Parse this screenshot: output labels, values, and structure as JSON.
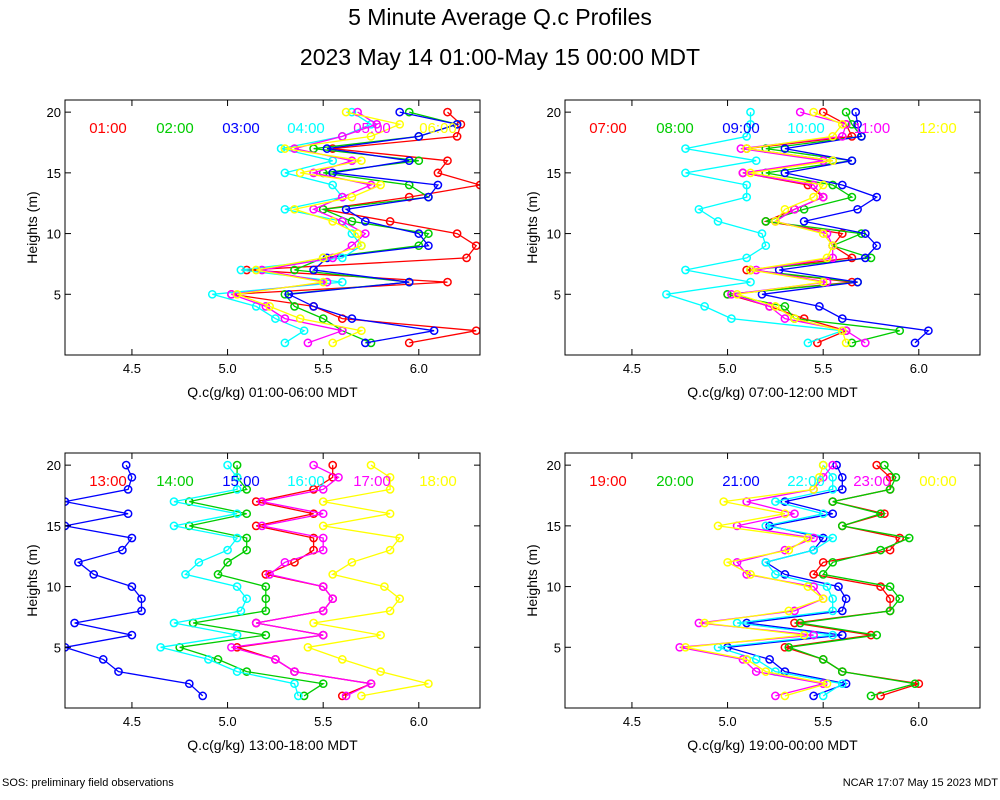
{
  "title": "5 Minute Average Q.c Profiles",
  "subtitle": "2023 May 14 01:00-May 15 00:00 MDT",
  "footer_left": "SOS: preliminary field observations",
  "footer_right": "NCAR 17:07 May 15 2023 MDT",
  "colors": {
    "c1": "#ff0000",
    "c2": "#00cc00",
    "c3": "#0000ff",
    "c4": "#00ffff",
    "c5": "#ff00ff",
    "c6": "#ffff00"
  },
  "chart_data": [
    {
      "type": "line",
      "xlabel": "Q.c(g/kg) 01:00-06:00 MDT",
      "ylabel": "Heights (m)",
      "xlim": [
        4.15,
        6.32
      ],
      "ylim": [
        0,
        21
      ],
      "xticks": [
        4.5,
        5.0,
        5.5,
        6.0
      ],
      "yticks": [
        5,
        10,
        15,
        20
      ],
      "heights": [
        1,
        2,
        3,
        4,
        5,
        6,
        7,
        8,
        9,
        10,
        11,
        12,
        13,
        14,
        15,
        16,
        17,
        18,
        19,
        20
      ],
      "series": [
        {
          "name": "01:00",
          "color": "#ff0000",
          "values": [
            5.95,
            6.3,
            5.6,
            5.45,
            5.02,
            6.15,
            5.1,
            6.25,
            6.3,
            6.2,
            5.85,
            5.5,
            5.95,
            6.32,
            6.1,
            6.15,
            5.55,
            6.2,
            6.22,
            6.15
          ]
        },
        {
          "name": "02:00",
          "color": "#00cc00",
          "values": [
            5.75,
            5.6,
            5.5,
            5.35,
            5.3,
            5.95,
            5.35,
            5.5,
            6.0,
            6.05,
            5.65,
            5.5,
            6.05,
            5.95,
            5.5,
            6.0,
            5.45,
            6.0,
            6.2,
            5.95
          ]
        },
        {
          "name": "03:00",
          "color": "#0000ff",
          "values": [
            5.72,
            6.08,
            5.65,
            5.45,
            5.32,
            5.95,
            5.45,
            5.52,
            6.05,
            6.0,
            5.72,
            5.62,
            6.05,
            6.1,
            5.55,
            5.95,
            5.52,
            6.0,
            6.2,
            5.9
          ]
        },
        {
          "name": "04:00",
          "color": "#00ffff",
          "values": [
            5.3,
            5.4,
            5.25,
            5.15,
            4.92,
            5.6,
            5.07,
            5.6,
            5.7,
            5.65,
            5.6,
            5.3,
            5.6,
            5.55,
            5.3,
            5.55,
            5.28,
            5.6,
            5.75,
            5.65
          ]
        },
        {
          "name": "05:00",
          "color": "#ff00ff",
          "values": [
            5.42,
            5.6,
            5.3,
            5.2,
            5.02,
            5.52,
            5.18,
            5.55,
            5.65,
            5.72,
            5.6,
            5.45,
            5.6,
            5.75,
            5.45,
            5.65,
            5.35,
            5.6,
            5.78,
            5.68
          ]
        },
        {
          "name": "06:00",
          "color": "#ffff00",
          "values": [
            5.55,
            5.7,
            5.38,
            5.22,
            5.05,
            5.5,
            5.15,
            5.5,
            5.7,
            5.68,
            5.55,
            5.35,
            5.65,
            5.8,
            5.38,
            5.7,
            5.3,
            5.75,
            5.9,
            5.62
          ]
        }
      ]
    },
    {
      "type": "line",
      "xlabel": "Q.c(g/kg) 07:00-12:00 MDT",
      "ylabel": "Heights (m)",
      "xlim": [
        4.15,
        6.32
      ],
      "ylim": [
        0,
        21
      ],
      "xticks": [
        4.5,
        5.0,
        5.5,
        6.0
      ],
      "yticks": [
        5,
        10,
        15,
        20
      ],
      "heights": [
        1,
        2,
        3,
        4,
        5,
        6,
        7,
        8,
        9,
        10,
        11,
        12,
        13,
        14,
        15,
        16,
        17,
        18,
        19,
        20
      ],
      "series": [
        {
          "name": "07:00",
          "color": "#ff0000",
          "values": [
            5.47,
            5.62,
            5.4,
            5.22,
            5.0,
            5.65,
            5.1,
            5.65,
            5.55,
            5.6,
            5.2,
            5.35,
            5.5,
            5.42,
            5.08,
            5.55,
            5.1,
            5.65,
            5.62,
            5.5
          ]
        },
        {
          "name": "08:00",
          "color": "#00cc00",
          "values": [
            5.65,
            5.9,
            5.35,
            5.3,
            5.0,
            5.68,
            5.12,
            5.75,
            5.55,
            5.7,
            5.2,
            5.4,
            5.65,
            5.55,
            5.2,
            5.65,
            5.2,
            5.7,
            5.65,
            5.62
          ]
        },
        {
          "name": "09:00",
          "color": "#0000ff",
          "values": [
            5.98,
            6.05,
            5.6,
            5.48,
            5.18,
            5.68,
            5.27,
            5.72,
            5.78,
            5.72,
            5.4,
            5.68,
            5.78,
            5.6,
            5.3,
            5.65,
            5.3,
            5.7,
            5.68,
            5.67
          ]
        },
        {
          "name": "10:00",
          "color": "#00ffff",
          "values": [
            5.42,
            5.6,
            5.02,
            4.88,
            4.68,
            5.12,
            4.78,
            5.1,
            5.2,
            5.18,
            4.95,
            4.85,
            5.1,
            5.1,
            4.78,
            5.15,
            4.78,
            5.1,
            5.12,
            5.12
          ]
        },
        {
          "name": "11:00",
          "color": "#ff00ff",
          "values": [
            5.72,
            5.62,
            5.3,
            5.22,
            5.02,
            5.52,
            5.15,
            5.55,
            5.55,
            5.52,
            5.25,
            5.35,
            5.5,
            5.45,
            5.08,
            5.5,
            5.07,
            5.6,
            5.62,
            5.38
          ]
        },
        {
          "name": "12:00",
          "color": "#ffff00",
          "values": [
            5.62,
            5.6,
            5.35,
            5.25,
            5.05,
            5.5,
            5.12,
            5.52,
            5.55,
            5.5,
            5.25,
            5.3,
            5.45,
            5.5,
            5.12,
            5.55,
            5.1,
            5.55,
            5.6,
            5.45
          ]
        }
      ]
    },
    {
      "type": "line",
      "xlabel": "Q.c(g/kg) 13:00-18:00 MDT",
      "ylabel": "Heights (m)",
      "xlim": [
        4.15,
        6.32
      ],
      "ylim": [
        0,
        21
      ],
      "xticks": [
        4.5,
        5.0,
        5.5,
        6.0
      ],
      "yticks": [
        5,
        10,
        15,
        20
      ],
      "heights": [
        1,
        2,
        3,
        4,
        5,
        6,
        7,
        8,
        9,
        10,
        11,
        12,
        13,
        14,
        15,
        16,
        17,
        18,
        19,
        20
      ],
      "series": [
        {
          "name": "13:00",
          "color": "#ff0000",
          "values": [
            5.6,
            5.75,
            5.35,
            5.25,
            5.05,
            5.5,
            5.15,
            5.5,
            5.55,
            5.5,
            5.2,
            5.35,
            5.45,
            5.45,
            5.15,
            5.45,
            5.15,
            5.45,
            5.55,
            5.55
          ]
        },
        {
          "name": "14:00",
          "color": "#00cc00",
          "values": [
            5.4,
            5.5,
            5.1,
            4.95,
            4.75,
            5.2,
            4.82,
            5.2,
            5.2,
            5.2,
            4.95,
            5.0,
            5.1,
            5.1,
            4.8,
            5.1,
            4.8,
            5.1,
            5.05,
            5.05
          ]
        },
        {
          "name": "15:00",
          "color": "#0000ff",
          "values": [
            4.87,
            4.8,
            4.43,
            4.35,
            4.15,
            4.5,
            4.2,
            4.55,
            4.55,
            4.5,
            4.3,
            4.22,
            4.45,
            4.5,
            4.15,
            4.48,
            4.15,
            4.48,
            4.5,
            4.47
          ]
        },
        {
          "name": "16:00",
          "color": "#00ffff",
          "values": [
            5.37,
            5.35,
            5.05,
            4.9,
            4.65,
            5.05,
            4.72,
            5.07,
            5.1,
            5.05,
            4.78,
            4.85,
            5.0,
            5.05,
            4.72,
            5.05,
            4.72,
            5.05,
            5.05,
            5.0
          ]
        },
        {
          "name": "17:00",
          "color": "#ff00ff",
          "values": [
            5.62,
            5.75,
            5.35,
            5.25,
            5.02,
            5.5,
            5.15,
            5.5,
            5.55,
            5.5,
            5.22,
            5.3,
            5.5,
            5.5,
            5.18,
            5.5,
            5.18,
            5.5,
            5.58,
            5.45
          ]
        },
        {
          "name": "18:00",
          "color": "#ffff00",
          "values": [
            5.7,
            6.05,
            5.8,
            5.6,
            5.42,
            5.8,
            5.45,
            5.85,
            5.9,
            5.82,
            5.55,
            5.65,
            5.85,
            5.9,
            5.5,
            5.85,
            5.5,
            5.85,
            5.85,
            5.75
          ]
        }
      ]
    },
    {
      "type": "line",
      "xlabel": "Q.c(g/kg) 19:00-00:00 MDT",
      "ylabel": "Heights (m)",
      "xlim": [
        4.15,
        6.32
      ],
      "ylim": [
        0,
        21
      ],
      "xticks": [
        4.5,
        5.0,
        5.5,
        6.0
      ],
      "yticks": [
        5,
        10,
        15,
        20
      ],
      "heights": [
        1,
        2,
        3,
        4,
        5,
        6,
        7,
        8,
        9,
        10,
        11,
        12,
        13,
        14,
        15,
        16,
        17,
        18,
        19,
        20
      ],
      "series": [
        {
          "name": "19:00",
          "color": "#ff0000",
          "values": [
            5.8,
            6.0,
            5.6,
            5.5,
            5.3,
            5.75,
            5.35,
            5.85,
            5.85,
            5.8,
            5.45,
            5.5,
            5.85,
            5.9,
            5.6,
            5.82,
            5.55,
            5.85,
            5.85,
            5.78
          ]
        },
        {
          "name": "20:00",
          "color": "#00cc00",
          "values": [
            5.75,
            5.98,
            5.6,
            5.5,
            5.32,
            5.78,
            5.38,
            5.85,
            5.9,
            5.85,
            5.5,
            5.55,
            5.8,
            5.95,
            5.6,
            5.8,
            5.55,
            5.85,
            5.88,
            5.82
          ]
        },
        {
          "name": "21:00",
          "color": "#0000ff",
          "values": [
            5.45,
            5.62,
            5.3,
            5.22,
            5.0,
            5.6,
            5.1,
            5.6,
            5.62,
            5.58,
            5.3,
            5.2,
            5.45,
            5.5,
            5.22,
            5.55,
            5.3,
            5.6,
            5.6,
            5.57
          ]
        },
        {
          "name": "22:00",
          "color": "#00ffff",
          "values": [
            5.5,
            5.6,
            5.25,
            5.15,
            4.95,
            5.55,
            5.05,
            5.55,
            5.55,
            5.52,
            5.25,
            5.2,
            5.45,
            5.55,
            5.2,
            5.5,
            5.25,
            5.55,
            5.55,
            5.5
          ]
        },
        {
          "name": "23:00",
          "color": "#ff00ff",
          "values": [
            5.25,
            5.5,
            5.15,
            5.08,
            4.75,
            5.45,
            4.85,
            5.35,
            5.5,
            5.45,
            5.1,
            5.05,
            5.3,
            5.45,
            5.05,
            5.35,
            5.1,
            5.45,
            5.5,
            5.55
          ]
        },
        {
          "name": "00:00",
          "color": "#ffff00",
          "values": [
            5.3,
            5.52,
            5.2,
            5.1,
            4.78,
            5.4,
            4.88,
            5.32,
            5.5,
            5.42,
            5.12,
            5.0,
            5.32,
            5.42,
            4.95,
            5.3,
            4.98,
            5.45,
            5.48,
            5.5
          ]
        }
      ]
    }
  ]
}
